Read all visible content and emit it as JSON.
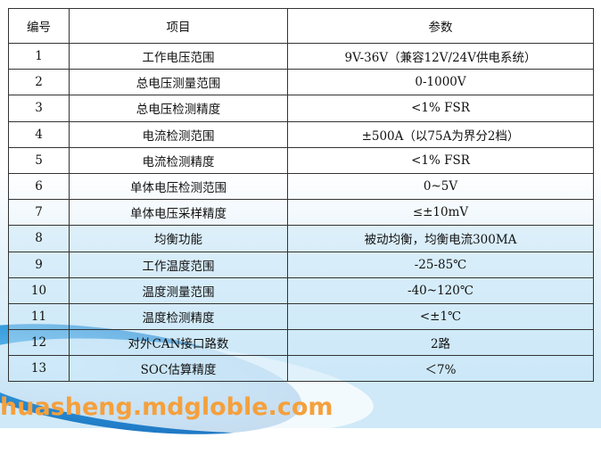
{
  "table": {
    "headers": [
      "编号",
      "项目",
      "参数"
    ],
    "rows": [
      [
        "1",
        "工作电压范围",
        "9V-36V（兼容12V/24V供电系统）"
      ],
      [
        "2",
        "总电压测量范围",
        "0-1000V"
      ],
      [
        "3",
        "总电压检测精度",
        "<1% FSR"
      ],
      [
        "4",
        "电流检测范围",
        "±500A（以75A为界分2档）"
      ],
      [
        "5",
        "电流检测精度",
        "<1% FSR"
      ],
      [
        "6",
        "单体电压检测范围",
        "0~5V"
      ],
      [
        "7",
        "单体电压采样精度",
        "≤±10mV"
      ],
      [
        "8",
        "均衡功能",
        "被动均衡，均衡电流300MA"
      ],
      [
        "9",
        "工作温度范围",
        "-25-85℃"
      ],
      [
        "10",
        "温度测量范围",
        "-40~120℃"
      ],
      [
        "11",
        "温度检测精度",
        "<±1℃"
      ],
      [
        "12",
        "对外CAN接口路数",
        "2路"
      ],
      [
        "13",
        "SOC估算精度",
        "＜7%"
      ]
    ]
  },
  "watermark": "huasheng.mdgloble.com",
  "colors": {
    "watermark": "#f5a03c",
    "accent_blue": "#2a8fd6"
  }
}
